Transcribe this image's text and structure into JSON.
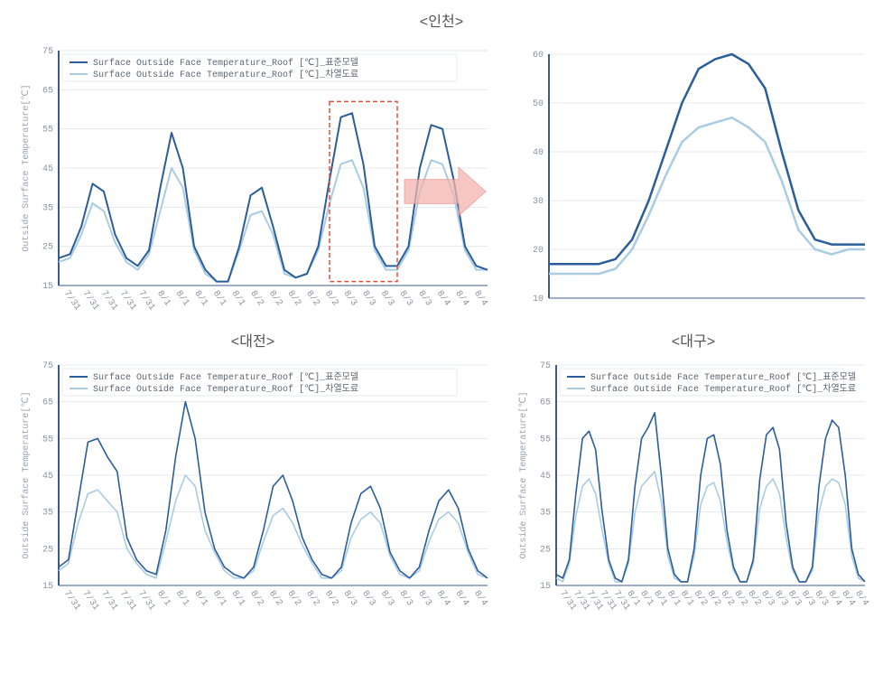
{
  "figure": {
    "background_color": "#ffffff",
    "font_family": "Courier New",
    "title_fontsize": 16,
    "title_color": "#555555"
  },
  "legend": {
    "series1_label": "Surface Outside Face Temperature_Roof [℃]_표준모델",
    "series2_label": "Surface Outside Face Temperature_Roof [℃]_차열도료"
  },
  "colors": {
    "series1": "#2b5d9b",
    "series2": "#a9cce3",
    "grid": "#e6e9ed",
    "axis": "#3b5b8c",
    "tick_text": "#8a94a0",
    "highlight_box": "#e74c3c",
    "arrow_fill": "#f2b4ae",
    "arrow_stroke": "#e7928b"
  },
  "titles": {
    "incheon": "<인천>",
    "daejeon": "<대전>",
    "daegu": "<대구>"
  },
  "axis_labels": {
    "y": "Outside Surface Temperature[℃]"
  },
  "incheon_chart": {
    "type": "line",
    "ylim": [
      15,
      75
    ],
    "ytick_step": 10,
    "x_categories": [
      "7/31",
      "7/31",
      "7/31",
      "7/31",
      "7/31",
      "8/1",
      "8/1",
      "8/1",
      "8/1",
      "8/1",
      "8/2",
      "8/2",
      "8/2",
      "8/2",
      "8/2",
      "8/3",
      "8/3",
      "8/3",
      "8/3",
      "8/3",
      "8/4",
      "8/4",
      "8/4"
    ],
    "series1": [
      22,
      23,
      30,
      41,
      39,
      28,
      22,
      20,
      24,
      40,
      54,
      45,
      25,
      19,
      16,
      16,
      25,
      38,
      40,
      30,
      19,
      17,
      18,
      25,
      42,
      58,
      59,
      46,
      25,
      20,
      20,
      25,
      45,
      56,
      55,
      42,
      25,
      20,
      19
    ],
    "series2": [
      21,
      22,
      28,
      36,
      34,
      26,
      21,
      19,
      23,
      34,
      45,
      40,
      24,
      18,
      16,
      16,
      24,
      33,
      34,
      28,
      18,
      17,
      18,
      24,
      36,
      46,
      47,
      40,
      24,
      19,
      19,
      24,
      39,
      47,
      46,
      38,
      24,
      19,
      19
    ],
    "line_width": 2,
    "highlight_x_range": [
      24,
      30
    ],
    "highlight_y_range": [
      16,
      62
    ]
  },
  "incheon_zoom": {
    "type": "line",
    "ylim": [
      10,
      60
    ],
    "ytick_step": 10,
    "series1": [
      17,
      17,
      17,
      17,
      18,
      22,
      30,
      40,
      50,
      57,
      59,
      60,
      58,
      53,
      40,
      28,
      22,
      21,
      21,
      21
    ],
    "series2": [
      15,
      15,
      15,
      15,
      16,
      20,
      27,
      35,
      42,
      45,
      46,
      47,
      45,
      42,
      34,
      24,
      20,
      19,
      20,
      20
    ],
    "line_width": 2.5
  },
  "daejeon_chart": {
    "type": "line",
    "ylim": [
      15,
      75
    ],
    "ytick_step": 10,
    "x_categories": [
      "7/31",
      "7/31",
      "7/31",
      "7/31",
      "7/31",
      "8/1",
      "8/1",
      "8/1",
      "8/1",
      "8/1",
      "8/2",
      "8/2",
      "8/2",
      "8/2",
      "8/2",
      "8/3",
      "8/3",
      "8/3",
      "8/3",
      "8/3",
      "8/4",
      "8/4",
      "8/4"
    ],
    "series1": [
      20,
      22,
      38,
      54,
      55,
      50,
      46,
      28,
      22,
      19,
      18,
      30,
      50,
      65,
      55,
      35,
      25,
      20,
      18,
      17,
      20,
      30,
      42,
      45,
      38,
      28,
      22,
      18,
      17,
      20,
      32,
      40,
      42,
      36,
      24,
      19,
      17,
      20,
      30,
      38,
      41,
      36,
      25,
      19,
      17
    ],
    "series2": [
      19,
      21,
      32,
      40,
      41,
      38,
      35,
      25,
      21,
      18,
      17,
      27,
      38,
      45,
      42,
      30,
      24,
      19,
      17,
      17,
      19,
      27,
      34,
      36,
      32,
      26,
      21,
      17,
      17,
      19,
      28,
      33,
      35,
      32,
      23,
      18,
      17,
      19,
      27,
      33,
      35,
      32,
      24,
      18,
      17
    ],
    "line_width": 1.6
  },
  "daegu_chart": {
    "type": "line",
    "ylim": [
      15,
      75
    ],
    "ytick_step": 10,
    "x_categories": [
      "7/31",
      "7/31",
      "7/31",
      "7/31",
      "7/31",
      "8/1",
      "8/1",
      "8/1",
      "8/1",
      "8/1",
      "8/2",
      "8/2",
      "8/2",
      "8/2",
      "8/2",
      "8/3",
      "8/3",
      "8/3",
      "8/3",
      "8/3",
      "8/4",
      "8/4",
      "8/4"
    ],
    "series1": [
      18,
      17,
      22,
      40,
      55,
      57,
      52,
      35,
      22,
      17,
      16,
      22,
      42,
      55,
      58,
      62,
      45,
      25,
      18,
      16,
      16,
      25,
      45,
      55,
      56,
      48,
      30,
      20,
      16,
      16,
      22,
      44,
      56,
      58,
      52,
      32,
      20,
      16,
      16,
      20,
      42,
      55,
      60,
      58,
      45,
      25,
      18,
      16
    ],
    "series2": [
      17,
      16,
      21,
      34,
      42,
      44,
      40,
      30,
      21,
      16,
      16,
      21,
      35,
      42,
      44,
      46,
      38,
      23,
      17,
      16,
      16,
      23,
      37,
      42,
      43,
      38,
      27,
      19,
      16,
      16,
      21,
      36,
      42,
      44,
      40,
      28,
      19,
      16,
      16,
      19,
      35,
      42,
      44,
      43,
      37,
      23,
      17,
      16
    ],
    "line_width": 1.6
  }
}
